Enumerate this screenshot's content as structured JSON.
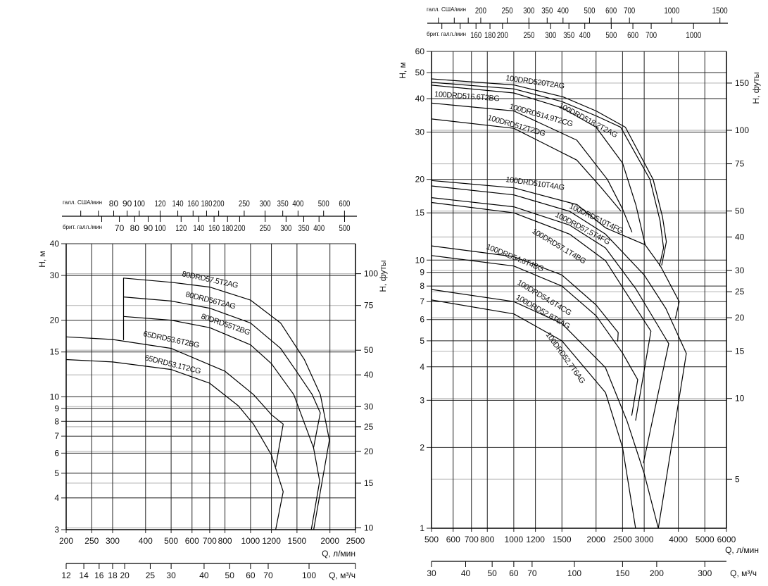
{
  "chart_data": [
    {
      "type": "line",
      "x_scale": "log",
      "y_scale": "log",
      "xlabel": "Q, л/мин",
      "ylabel": "H, м",
      "y2label": "H, футы",
      "xlim": [
        200,
        2500
      ],
      "ylim": [
        3,
        40
      ],
      "grid": true,
      "x_ticks": [
        200,
        250,
        300,
        400,
        500,
        600,
        700,
        800,
        1000,
        1200,
        1500,
        2000,
        2500
      ],
      "y_ticks": [
        3,
        4,
        5,
        6,
        7,
        8,
        9,
        10,
        15,
        20,
        30,
        40
      ],
      "y2_ticks": [
        10,
        15,
        20,
        25,
        30,
        40,
        50,
        75,
        100
      ],
      "feet_per_meter": 3.2808,
      "top_axes": [
        {
          "label": "галл. США/мин",
          "liters_per_unit": 3.785,
          "ticks": [
            80,
            90,
            100,
            120,
            140,
            160,
            180,
            200,
            250,
            300,
            350,
            400,
            500,
            600
          ],
          "minor_ticks": [
            60,
            70
          ]
        },
        {
          "label": "брит. галл./мин",
          "liters_per_unit": 4.546,
          "ticks": [
            70,
            80,
            90,
            100,
            120,
            140,
            160,
            180,
            200,
            250,
            300,
            350,
            400,
            500
          ],
          "minor_ticks": [
            60
          ]
        }
      ],
      "bottom_axis2": {
        "label": "Q, м³/ч",
        "lpm_per_unit": 16.667,
        "ticks": [
          12,
          14,
          16,
          18,
          20,
          25,
          30,
          40,
          50,
          60,
          70,
          100
        ]
      },
      "series": [
        {
          "name": "80DRD57.5T2AG",
          "points": [
            [
              330,
              16.7
            ],
            [
              330,
              29.3
            ],
            [
              500,
              28.2
            ],
            [
              700,
              27
            ],
            [
              1000,
              24
            ],
            [
              1300,
              19.5
            ],
            [
              1600,
              14
            ],
            [
              1840,
              10.2
            ],
            [
              1990,
              6.75
            ],
            [
              1735,
              3
            ]
          ]
        },
        {
          "name": "80DRD56T2AG",
          "points": [
            [
              330,
              24.7
            ],
            [
              500,
              23.8
            ],
            [
              700,
              22.3
            ],
            [
              1000,
              19.5
            ],
            [
              1300,
              15.5
            ],
            [
              1500,
              12.5
            ],
            [
              1713,
              10.2
            ],
            [
              1839,
              8.64
            ],
            [
              1733,
              6.3
            ]
          ]
        },
        {
          "name": "80DRD55T2BG",
          "points": [
            [
              330,
              20.7
            ],
            [
              500,
              20
            ],
            [
              700,
              18.7
            ],
            [
              1000,
              16
            ],
            [
              1200,
              13.5
            ],
            [
              1458,
              10.2
            ],
            [
              1733,
              6.3
            ],
            [
              1828,
              4.66
            ],
            [
              1700,
              3
            ]
          ]
        },
        {
          "name": "65DRD53.6T2BG",
          "points": [
            [
              200,
              17.2
            ],
            [
              300,
              16.8
            ],
            [
              500,
              15.5
            ],
            [
              800,
              12.6
            ],
            [
              1026,
              10.2
            ],
            [
              1200,
              8.5
            ],
            [
              1330,
              7.8
            ],
            [
              1245,
              5.3
            ]
          ]
        },
        {
          "name": "65DRD53.1T2CG",
          "points": [
            [
              200,
              14
            ],
            [
              300,
              13.7
            ],
            [
              500,
              12.8
            ],
            [
              700,
              11.3
            ],
            [
              900,
              9.2
            ],
            [
              1026,
              7.8
            ],
            [
              1200,
              5.9
            ],
            [
              1330,
              4.23
            ],
            [
              1245,
              3
            ]
          ]
        }
      ]
    },
    {
      "type": "line",
      "x_scale": "log",
      "y_scale": "log",
      "xlabel": "Q, л/мин",
      "ylabel": "H, м",
      "y2label": "H, футы",
      "xlim": [
        500,
        6000
      ],
      "ylim": [
        1,
        60
      ],
      "grid": true,
      "x_ticks": [
        500,
        600,
        700,
        800,
        1000,
        1200,
        1500,
        2000,
        2500,
        3000,
        4000,
        5000,
        6000
      ],
      "y_ticks": [
        1,
        2,
        3,
        4,
        5,
        6,
        7,
        8,
        9,
        10,
        15,
        20,
        30,
        40,
        50,
        60
      ],
      "y2_ticks": [
        5,
        10,
        15,
        20,
        25,
        30,
        40,
        50,
        75,
        100,
        150
      ],
      "feet_per_meter": 3.2808,
      "top_axes": [
        {
          "label": "галл. США/мин",
          "liters_per_unit": 3.785,
          "ticks": [
            200,
            250,
            300,
            350,
            400,
            500,
            600,
            700,
            1000,
            1500
          ],
          "minor_ticks": [
            140,
            160,
            180
          ]
        },
        {
          "label": "брит. галл./мин",
          "liters_per_unit": 4.546,
          "ticks": [
            160,
            180,
            200,
            250,
            300,
            350,
            400,
            500,
            600,
            700,
            1000
          ],
          "minor_ticks": [
            120,
            140
          ]
        }
      ],
      "bottom_axis2": {
        "label": "Q, м³/ч",
        "lpm_per_unit": 16.667,
        "ticks": [
          30,
          40,
          50,
          60,
          70,
          100,
          150,
          200,
          300
        ]
      },
      "series": [
        {
          "name": "100DRD520T2AG",
          "points": [
            [
              500,
              47.4
            ],
            [
              1000,
              45
            ],
            [
              1515,
              40.6
            ],
            [
              2000,
              36
            ],
            [
              2560,
              31.3
            ],
            [
              3235,
              20
            ],
            [
              3500,
              14.5
            ],
            [
              3615,
              11.7
            ],
            [
              3475,
              9.55
            ]
          ]
        },
        {
          "name": "100DRD516.6T2BG",
          "points": [
            [
              500,
              44.9
            ],
            [
              1000,
              42
            ],
            [
              1500,
              37
            ],
            [
              2000,
              31.3
            ],
            [
              2500,
              23
            ],
            [
              2800,
              16
            ],
            [
              3025,
              11.4
            ]
          ]
        },
        {
          "name": "100DRD518.2T2AG",
          "points": [
            [
              500,
              46
            ],
            [
              1000,
              43.5
            ],
            [
              1500,
              39
            ],
            [
              2000,
              34.5
            ],
            [
              2460,
              31.3
            ],
            [
              3150,
              20
            ],
            [
              3430,
              14
            ],
            [
              3530,
              11.1
            ],
            [
              3410,
              9.5
            ]
          ]
        },
        {
          "name": "100DRD514.9T2CG",
          "points": [
            [
              500,
              38.5
            ],
            [
              1000,
              36
            ],
            [
              1700,
              28
            ],
            [
              2200,
              20
            ],
            [
              2500,
              15.5
            ],
            [
              2707,
              12.7
            ]
          ]
        },
        {
          "name": "100DRD512T2DG",
          "points": [
            [
              500,
              33.6
            ],
            [
              1000,
              31
            ],
            [
              1700,
              23.6
            ],
            [
              2100,
              18.5
            ],
            [
              2470,
              15.2
            ]
          ]
        },
        {
          "name": "100DRD510T4AG",
          "points": [
            [
              500,
              19.8
            ],
            [
              1000,
              18.6
            ],
            [
              1704,
              16.1
            ],
            [
              2165,
              13.2
            ],
            [
              3025,
              11.4
            ],
            [
              3440,
              9.5
            ],
            [
              4030,
              7.0
            ],
            [
              3900,
              6.05
            ]
          ]
        },
        {
          "name": "100DRD510T4FG",
          "points": [
            [
              500,
              18.9
            ],
            [
              1000,
              17.5
            ],
            [
              1600,
              15.2
            ],
            [
              2165,
              12.5
            ],
            [
              3000,
              8.8
            ],
            [
              3600,
              6.6
            ],
            [
              4280,
              4.49
            ],
            [
              3380,
              1
            ]
          ]
        },
        {
          "name": "100DRD57.5T4FG",
          "points": [
            [
              500,
              17.1
            ],
            [
              1000,
              15.8
            ],
            [
              1600,
              13.5
            ],
            [
              2165,
              11.1
            ],
            [
              2800,
              7.8
            ],
            [
              3300,
              5.9
            ],
            [
              3690,
              4.88
            ],
            [
              2980,
              1.75
            ]
          ]
        },
        {
          "name": "100DRD57.1T4BG",
          "points": [
            [
              500,
              16.4
            ],
            [
              1000,
              15
            ],
            [
              1600,
              12.5
            ],
            [
              2165,
              9.95
            ],
            [
              2700,
              7.0
            ],
            [
              3175,
              5.43
            ],
            [
              2790,
              2.52
            ]
          ]
        },
        {
          "name": "100DRD54.6T4BG",
          "points": [
            [
              500,
              11.3
            ],
            [
              1000,
              10.3
            ],
            [
              1500,
              8.8
            ],
            [
              2000,
              6.8
            ],
            [
              2410,
              5.37
            ],
            [
              2400,
              4.97
            ]
          ]
        },
        {
          "name": "100DRD54.6T4CG",
          "points": [
            [
              500,
              10.4
            ],
            [
              1000,
              9.5
            ],
            [
              1500,
              8
            ],
            [
              2000,
              6.2
            ],
            [
              2500,
              4.5
            ],
            [
              2840,
              3.58
            ],
            [
              2700,
              2.63
            ]
          ]
        },
        {
          "name": "100DRD52.8T6AG",
          "points": [
            [
              500,
              7.77
            ],
            [
              1000,
              7.0
            ],
            [
              1500,
              5.8
            ],
            [
              2165,
              3.97
            ],
            [
              2600,
              2.5
            ],
            [
              3000,
              1.6
            ],
            [
              3380,
              1
            ]
          ]
        },
        {
          "name": "100DRD52.7T6AG",
          "points": [
            [
              500,
              7.1
            ],
            [
              1000,
              6.3
            ],
            [
              1500,
              5.0
            ],
            [
              2165,
              3.21
            ],
            [
              2500,
              2.0
            ],
            [
              2790,
              1
            ]
          ]
        }
      ]
    }
  ]
}
